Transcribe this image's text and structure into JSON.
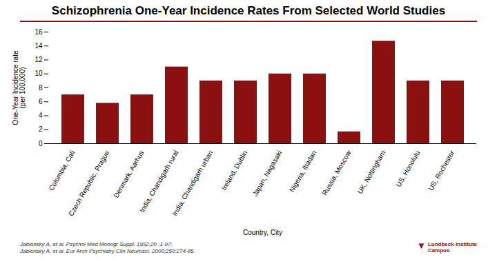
{
  "chart_data": {
    "type": "bar",
    "title": "Schizophrenia One-Year Incidence Rates From Selected World Studies",
    "categories": [
      "Colombia, Cali",
      "Czech Republic, Prague",
      "Denmark, Aarhus",
      "India, Chandigarh rural",
      "India, Chandigarh urban",
      "Ireland, Dublin",
      "Japan, Nagasaki",
      "Nigeria, Ibadan",
      "Russia, Moscow",
      "UK, Nottingham",
      "US, Honolulu",
      "US, Rochester"
    ],
    "values": [
      7.0,
      5.8,
      7.0,
      11.0,
      9.0,
      9.0,
      10.0,
      10.0,
      1.7,
      14.7,
      9.0,
      9.0
    ],
    "color": "#8B1010",
    "xlabel": "Country, City",
    "ylabel": "One-Year Incidence rate\n(per 100,000)",
    "ylim": [
      0,
      16
    ],
    "yticks": [
      0,
      2,
      4,
      6,
      8,
      10,
      12,
      14,
      16
    ],
    "grid": false,
    "annotations": [
      "Jablensky A, et al. Psychol Med Monogr Suppl. 1992;20 :1-97;",
      "Jablensky A, et al. Eur Arch Psychiatry Clin Neurosci. 2000;250:274-85.",
      "▼",
      "Lundbeck Institute\nCampus"
    ]
  }
}
